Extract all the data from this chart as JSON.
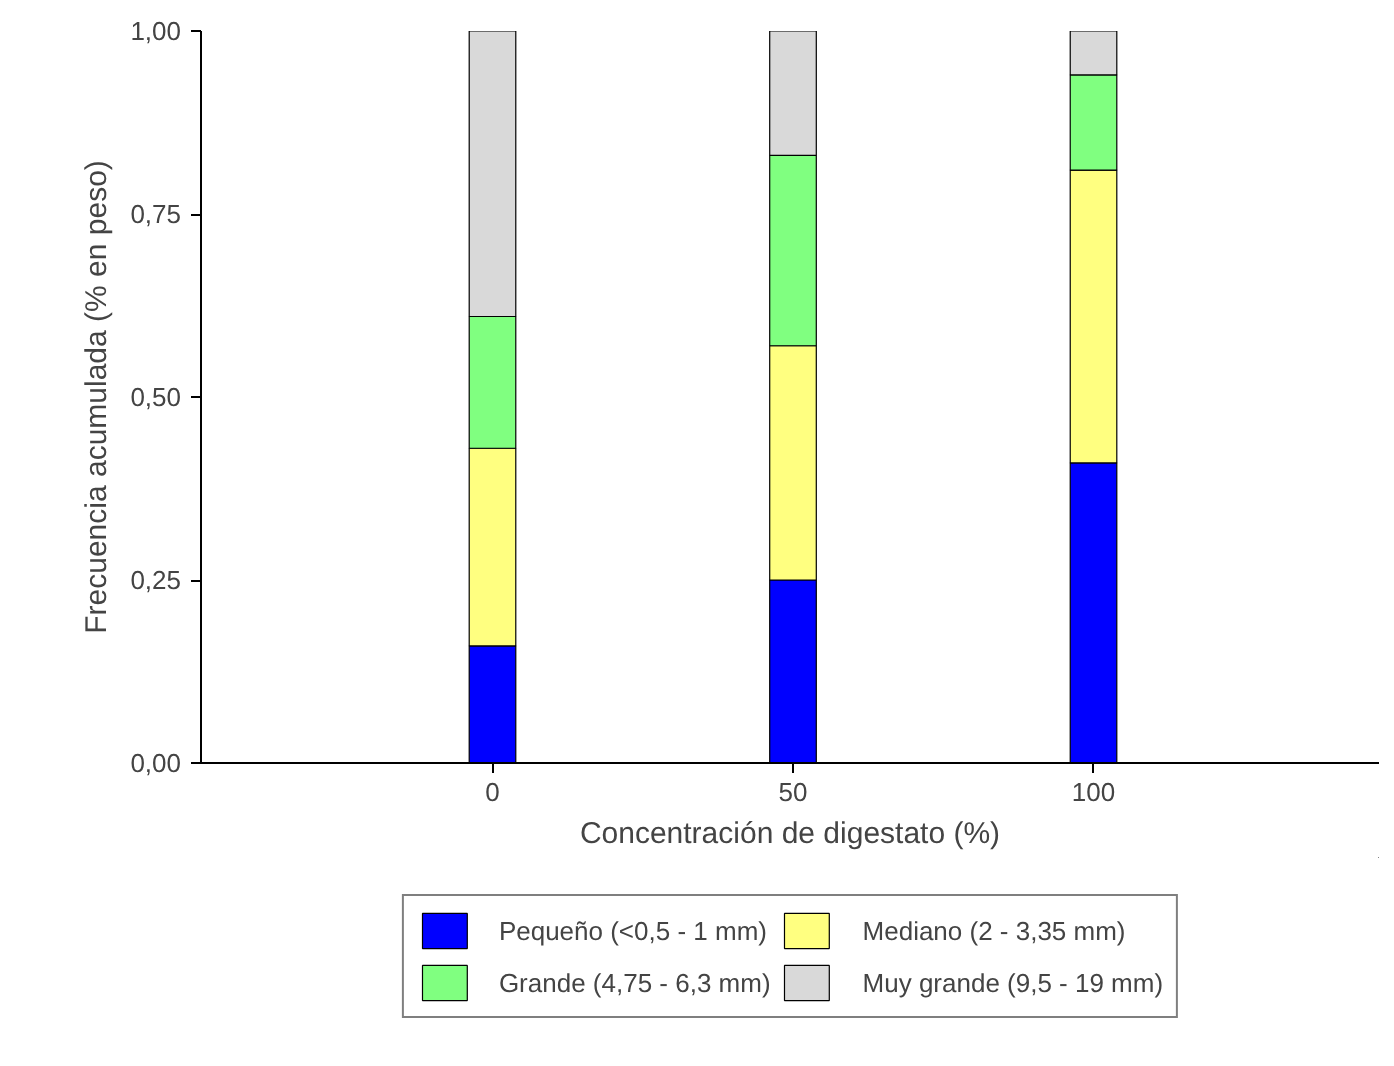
{
  "chart_data": {
    "type": "bar",
    "stacked": true,
    "xlabel": "Concentración de digestato (%)",
    "ylabel": "Frecuencia acumulada (% en peso)",
    "categories": [
      "0",
      "50",
      "100"
    ],
    "series": [
      {
        "name": "Pequeño (<0,5 - 1 mm)",
        "color": "#0000ff",
        "values": [
          0.16,
          0.25,
          0.41
        ]
      },
      {
        "name": "Mediano (2 - 3,35 mm)",
        "color": "#ffff80",
        "values": [
          0.27,
          0.32,
          0.4
        ]
      },
      {
        "name": "Grande (4,75 - 6,3 mm)",
        "color": "#80ff80",
        "values": [
          0.18,
          0.26,
          0.13
        ]
      },
      {
        "name": "Muy grande (9,5 - 19 mm)",
        "color": "#d9d9d9",
        "values": [
          0.39,
          0.17,
          0.06
        ]
      }
    ],
    "ylim": [
      0,
      1
    ],
    "yticks": [
      {
        "value": 0,
        "label": "0,00"
      },
      {
        "value": 0.25,
        "label": "0,25"
      },
      {
        "value": 0.5,
        "label": "0,50"
      },
      {
        "value": 0.75,
        "label": "0,75"
      },
      {
        "value": 1,
        "label": "1,00"
      }
    ],
    "grid": false,
    "legend": "bottom"
  }
}
